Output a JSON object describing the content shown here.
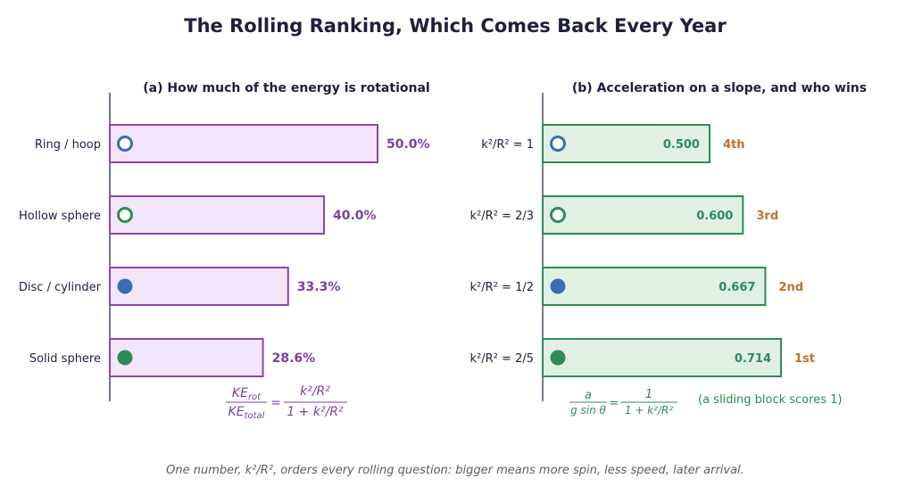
{
  "title": "The Rolling Ranking, Which Comes Back Every Year",
  "footer": "One number, k²/R², orders every rolling question: bigger means more spin, less speed, later arrival.",
  "colors": {
    "panel_a_fill": "#f3e6fa",
    "panel_a_stroke": "#8e44ad",
    "panel_a_text": "#7b3fa0",
    "panel_b_fill": "#e0f0e3",
    "panel_b_stroke": "#2e8b57",
    "panel_b_text": "#2e8b57",
    "hollow_blue": "#3c6db4",
    "hollow_green": "#2e8b57",
    "rank_text": "#c0712c",
    "axis": "#1f1f3d"
  },
  "chart_data": [
    {
      "type": "bar",
      "orientation": "horizontal",
      "title": "(a) How much of the energy is rotational",
      "categories": [
        "Ring / hoop",
        "Hollow sphere",
        "Disc / cylinder",
        "Solid sphere"
      ],
      "values": [
        50.0,
        40.0,
        33.3,
        28.6
      ],
      "value_labels": [
        "50.0%",
        "40.0%",
        "33.3%",
        "28.6%"
      ],
      "markers": [
        {
          "style": "hollow",
          "color": "#3c6db4"
        },
        {
          "style": "hollow",
          "color": "#2e8b57"
        },
        {
          "style": "filled",
          "color": "#3c6db4"
        },
        {
          "style": "filled",
          "color": "#2e8b57"
        }
      ],
      "xlim": [
        0,
        50
      ],
      "grid": false,
      "formula": {
        "lhs_num": "KE",
        "lhs_num_sub": "rot",
        "lhs_den": "KE",
        "lhs_den_sub": "total",
        "eq": "=",
        "rhs_num": "k²/R²",
        "rhs_den": "1 + k²/R²"
      }
    },
    {
      "type": "bar",
      "orientation": "horizontal",
      "title": "(b) Acceleration on a slope, and who wins",
      "categories": [
        "k²/R² = 1",
        "k²/R² = 2/3",
        "k²/R² = 1/2",
        "k²/R² = 2/5"
      ],
      "values": [
        0.5,
        0.6,
        0.667,
        0.714
      ],
      "value_labels": [
        "0.500",
        "0.600",
        "0.667",
        "0.714"
      ],
      "ranks": [
        "4th",
        "3rd",
        "2nd",
        "1st"
      ],
      "markers": [
        {
          "style": "hollow",
          "color": "#3c6db4"
        },
        {
          "style": "hollow",
          "color": "#2e8b57"
        },
        {
          "style": "filled",
          "color": "#3c6db4"
        },
        {
          "style": "filled",
          "color": "#2e8b57"
        }
      ],
      "xlim": [
        0,
        0.714
      ],
      "grid": false,
      "formula": {
        "lhs_num": "a",
        "lhs_den": "g sin θ",
        "eq": "=",
        "rhs_num": "1",
        "rhs_den": "1 + k²/R²"
      },
      "note": "(a sliding block scores 1)"
    }
  ]
}
